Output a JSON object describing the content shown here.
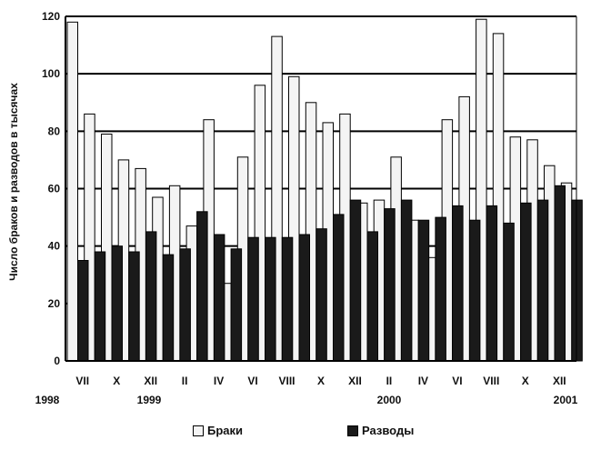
{
  "chart_data": {
    "type": "bar",
    "ylabel": "Число браков и разводов в тысячах",
    "ylim": [
      0,
      120
    ],
    "yticks": [
      0,
      20,
      40,
      60,
      80,
      100,
      120
    ],
    "grid": true,
    "legend_position": "bottom",
    "month_labels": [
      "VII",
      "X",
      "XII",
      "II",
      "IV",
      "VI",
      "VIII",
      "X",
      "XII",
      "II",
      "IV",
      "VI",
      "VIII",
      "X",
      "XII"
    ],
    "year_labels": [
      "1998",
      "1999",
      "2000",
      "2001"
    ],
    "series": [
      {
        "name": "Браки",
        "color": "#f4f4f4",
        "values": [
          118,
          86,
          79,
          70,
          67,
          57,
          61,
          47,
          84,
          27,
          71,
          96,
          113,
          99,
          90,
          83,
          86,
          55,
          56,
          71,
          49,
          36,
          84,
          92,
          119,
          114,
          78,
          77,
          68,
          62
        ]
      },
      {
        "name": "Разводы",
        "color": "#1a1a1a",
        "values": [
          35,
          38,
          40,
          38,
          45,
          37,
          39,
          52,
          44,
          39,
          43,
          43,
          43,
          44,
          46,
          51,
          56,
          45,
          53,
          56,
          49,
          50,
          54,
          49,
          54,
          48,
          55,
          56,
          61,
          56
        ]
      }
    ]
  }
}
